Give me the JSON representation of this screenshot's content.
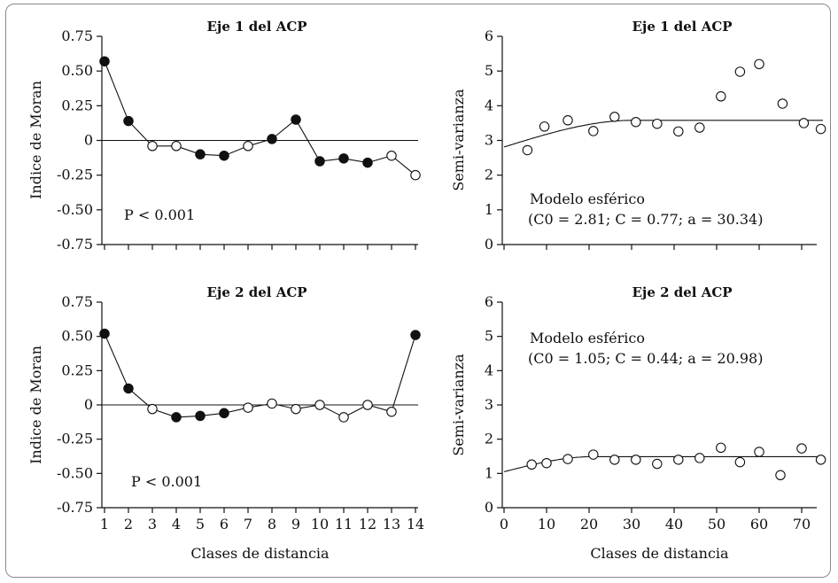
{
  "chart_data": [
    {
      "type": "line",
      "title": "Eje 1 del ACP",
      "xlabel": "",
      "ylabel": "Indice de Moran",
      "x": [
        1,
        2,
        3,
        4,
        5,
        6,
        7,
        8,
        9,
        10,
        11,
        12,
        13,
        14
      ],
      "xlim": [
        1,
        14
      ],
      "ylim": [
        -0.75,
        0.75
      ],
      "yticks": [
        "0.75",
        "0.50",
        "0.25",
        "0",
        "-0.25",
        "-0.50",
        "-0.75"
      ],
      "reference_line": 0,
      "series": [
        {
          "values": [
            0.57,
            0.14,
            -0.04,
            -0.04,
            -0.1,
            -0.11,
            -0.04,
            0.01,
            0.15,
            -0.15,
            -0.13,
            -0.16,
            -0.11,
            -0.25
          ],
          "significant": [
            true,
            true,
            false,
            false,
            true,
            true,
            false,
            true,
            true,
            true,
            true,
            true,
            false,
            false
          ]
        }
      ],
      "annotation": "P < 0.001",
      "show_x_ticklabels": false
    },
    {
      "type": "scatter",
      "title": "Eje 1 del ACP",
      "xlabel": "",
      "ylabel": "Semi-varianza",
      "xlim": [
        0,
        75
      ],
      "ylim": [
        0,
        6
      ],
      "yticks": [
        "0",
        "1",
        "2",
        "3",
        "4",
        "5",
        "6"
      ],
      "series": [
        {
          "x": [
            5.5,
            9.5,
            15,
            21,
            26,
            31,
            36,
            41,
            46,
            51,
            55.5,
            60,
            65.5,
            70.5,
            74.5
          ],
          "values": [
            2.72,
            3.4,
            3.58,
            3.27,
            3.68,
            3.53,
            3.48,
            3.26,
            3.37,
            4.27,
            4.98,
            5.2,
            4.06,
            3.5,
            3.33
          ]
        }
      ],
      "model": {
        "type": "spherical",
        "c0": 2.81,
        "c": 0.77,
        "a": 30.34
      },
      "annotation_line1": "Modelo esférico",
      "annotation_line2": "(C0 = 2.81; C = 0.77; a = 30.34)",
      "show_x_ticklabels": false
    },
    {
      "type": "line",
      "title": "Eje 2 del ACP",
      "xlabel": "Clases de distancia",
      "ylabel": "Indice de Moran",
      "x": [
        1,
        2,
        3,
        4,
        5,
        6,
        7,
        8,
        9,
        10,
        11,
        12,
        13,
        14
      ],
      "xlim": [
        1,
        14
      ],
      "ylim": [
        -0.75,
        0.75
      ],
      "yticks": [
        "0.75",
        "0.50",
        "0.25",
        "0",
        "-0.25",
        "-0.50",
        "-0.75"
      ],
      "xticks": [
        "1",
        "2",
        "3",
        "4",
        "5",
        "6",
        "7",
        "8",
        "9",
        "10",
        "11",
        "12",
        "13",
        "14"
      ],
      "reference_line": 0,
      "series": [
        {
          "values": [
            0.52,
            0.12,
            -0.03,
            -0.09,
            -0.08,
            -0.06,
            -0.02,
            0.01,
            -0.03,
            0.0,
            -0.09,
            0.0,
            -0.05,
            0.51
          ],
          "significant": [
            true,
            true,
            false,
            true,
            true,
            true,
            false,
            false,
            false,
            false,
            false,
            false,
            false,
            true
          ]
        }
      ],
      "annotation": "P < 0.001",
      "show_x_ticklabels": true
    },
    {
      "type": "scatter",
      "title": "Eje 2 del ACP",
      "xlabel": "Clases de distancia",
      "ylabel": "Semi-varianza",
      "xlim": [
        0,
        75
      ],
      "ylim": [
        0,
        6
      ],
      "yticks": [
        "0",
        "1",
        "2",
        "3",
        "4",
        "5",
        "6"
      ],
      "xticks": [
        "0",
        "10",
        "20",
        "30",
        "40",
        "50",
        "60",
        "70"
      ],
      "series": [
        {
          "x": [
            6.5,
            10,
            15,
            21,
            26,
            31,
            36,
            41,
            46,
            51,
            55.5,
            60,
            65,
            70,
            74.5
          ],
          "values": [
            1.26,
            1.3,
            1.42,
            1.55,
            1.4,
            1.4,
            1.28,
            1.4,
            1.45,
            1.75,
            1.33,
            1.63,
            0.95,
            1.73,
            1.4
          ]
        }
      ],
      "model": {
        "type": "spherical",
        "c0": 1.05,
        "c": 0.44,
        "a": 20.98
      },
      "annotation_line1": "Modelo esférico",
      "annotation_line2": "(C0 = 1.05; C = 0.44; a = 20.98)",
      "show_x_ticklabels": true
    }
  ]
}
